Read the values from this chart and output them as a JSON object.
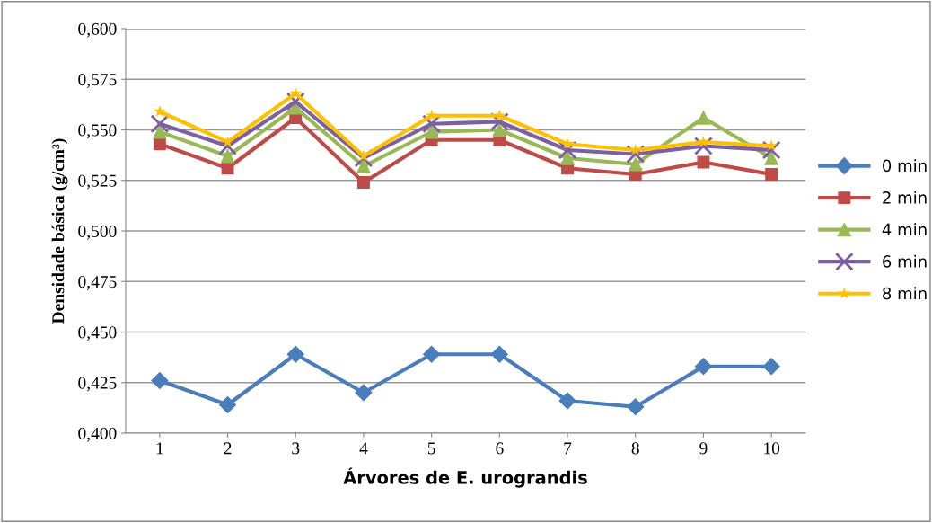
{
  "chart_data": {
    "type": "line",
    "xlabel": "Árvores de E. urograndis",
    "ylabel": "Densidade básica (g/cm³)",
    "categories": [
      "1",
      "2",
      "3",
      "4",
      "5",
      "6",
      "7",
      "8",
      "9",
      "10"
    ],
    "series": [
      {
        "name": "0 min",
        "color": "#4a7ebb",
        "marker": "diamond",
        "values": [
          0.426,
          0.414,
          0.439,
          0.42,
          0.439,
          0.439,
          0.416,
          0.413,
          0.433,
          0.433
        ]
      },
      {
        "name": "2 min",
        "color": "#be4b48",
        "marker": "square",
        "values": [
          0.543,
          0.531,
          0.556,
          0.524,
          0.545,
          0.545,
          0.531,
          0.528,
          0.534,
          0.528
        ]
      },
      {
        "name": "4 min",
        "color": "#98b954",
        "marker": "triangle",
        "values": [
          0.549,
          0.537,
          0.561,
          0.532,
          0.549,
          0.55,
          0.536,
          0.533,
          0.556,
          0.536
        ]
      },
      {
        "name": "6 min",
        "color": "#7d60a0",
        "marker": "cross",
        "values": [
          0.553,
          0.542,
          0.564,
          0.536,
          0.553,
          0.554,
          0.54,
          0.538,
          0.542,
          0.54
        ]
      },
      {
        "name": "8 min",
        "color": "#ffc000",
        "marker": "star",
        "values": [
          0.559,
          0.544,
          0.568,
          0.537,
          0.557,
          0.557,
          0.543,
          0.54,
          0.544,
          0.542
        ]
      }
    ],
    "ylim": [
      0.4,
      0.6
    ],
    "yticks": [
      {
        "value": 0.4,
        "label": "0,400"
      },
      {
        "value": 0.425,
        "label": "0,425"
      },
      {
        "value": 0.45,
        "label": "0,450"
      },
      {
        "value": 0.475,
        "label": "0,475"
      },
      {
        "value": 0.5,
        "label": "0,500"
      },
      {
        "value": 0.525,
        "label": "0,525"
      },
      {
        "value": 0.55,
        "label": "0,550"
      },
      {
        "value": 0.575,
        "label": "0,575"
      },
      {
        "value": 0.6,
        "label": "0,600"
      }
    ],
    "grid": "y",
    "legend": "right"
  }
}
